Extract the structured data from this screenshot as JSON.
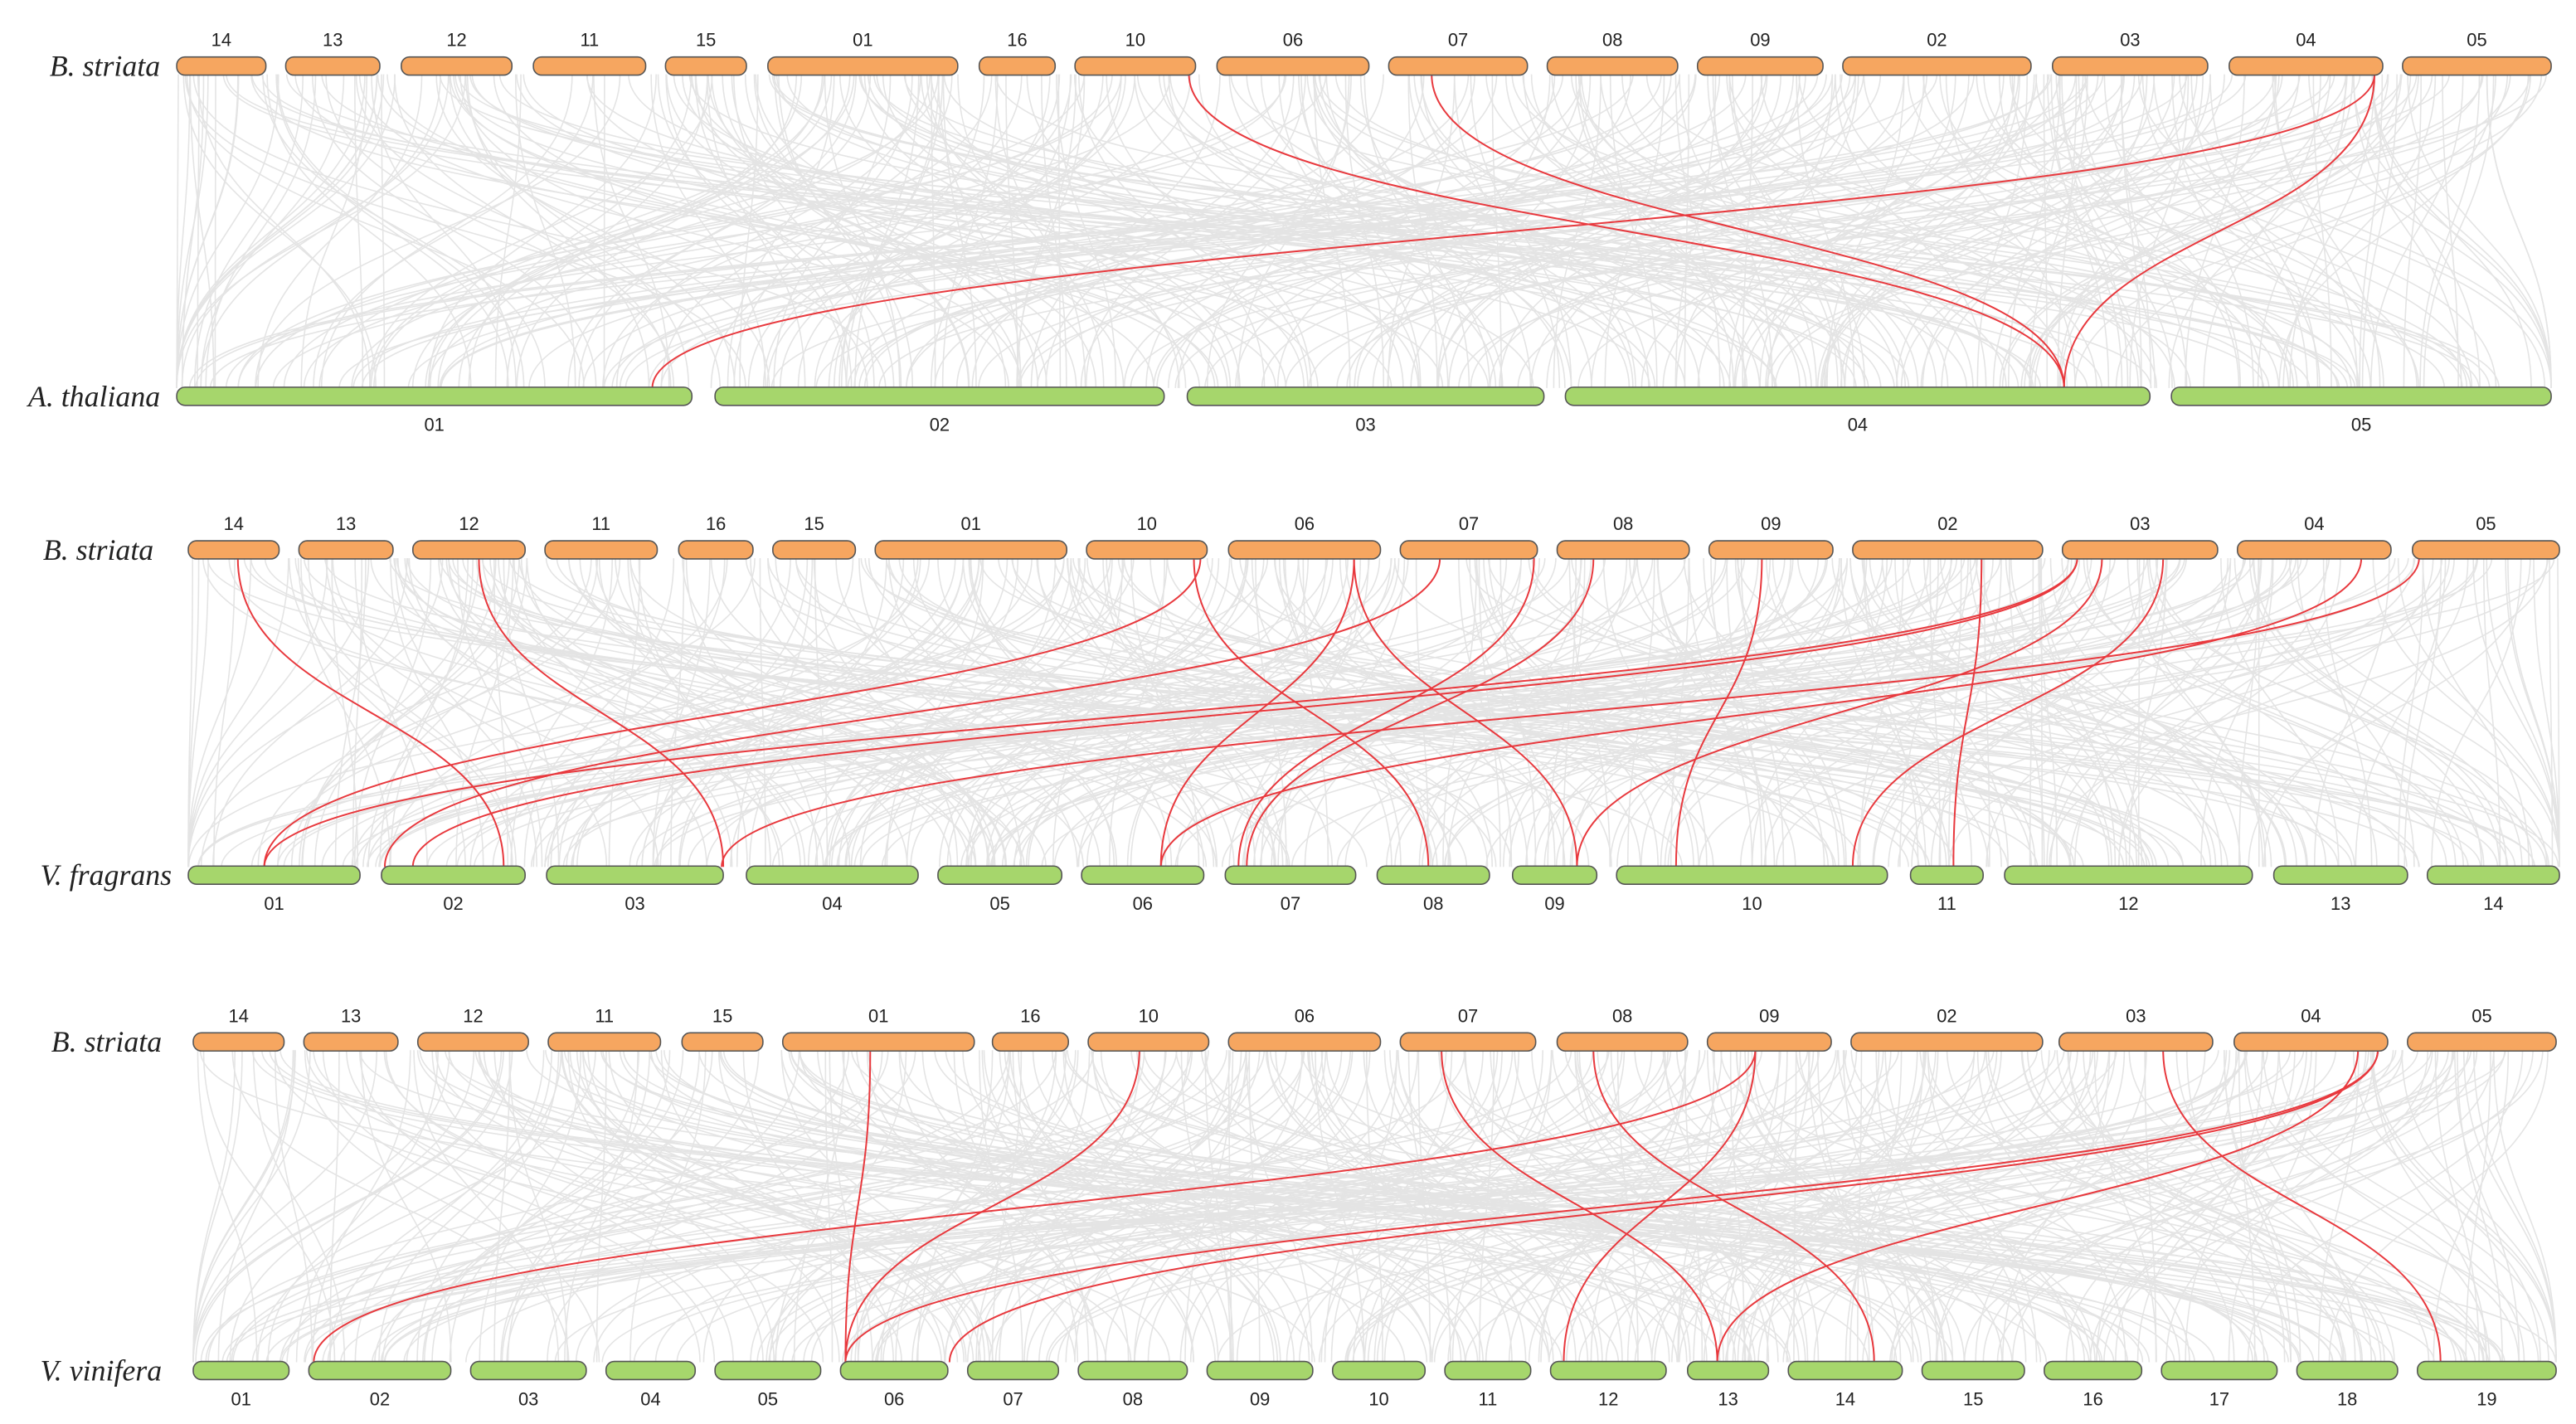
{
  "panels": [
    {
      "top": {
        "species": "B. striata",
        "chromosomes": [
          "14",
          "13",
          "12",
          "11",
          "15",
          "01",
          "16",
          "10",
          "06",
          "07",
          "08",
          "09",
          "02",
          "03",
          "04",
          "05"
        ]
      },
      "bottom": {
        "species": "A. thaliana",
        "chromosomes": [
          "01",
          "02",
          "03",
          "04",
          "05"
        ]
      }
    },
    {
      "top": {
        "species": "B. striata",
        "chromosomes": [
          "14",
          "13",
          "12",
          "11",
          "16",
          "15",
          "01",
          "10",
          "06",
          "07",
          "08",
          "09",
          "02",
          "03",
          "04",
          "05"
        ]
      },
      "bottom": {
        "species": "V. fragrans",
        "chromosomes": [
          "01",
          "02",
          "03",
          "04",
          "05",
          "06",
          "07",
          "08",
          "09",
          "10",
          "11",
          "12",
          "13",
          "14"
        ]
      }
    },
    {
      "top": {
        "species": "B. striata",
        "chromosomes": [
          "14",
          "13",
          "12",
          "11",
          "15",
          "01",
          "16",
          "10",
          "06",
          "07",
          "08",
          "09",
          "02",
          "03",
          "04",
          "05"
        ]
      },
      "bottom": {
        "species": "V. vinifera",
        "chromosomes": [
          "01",
          "02",
          "03",
          "04",
          "05",
          "06",
          "07",
          "08",
          "09",
          "10",
          "11",
          "12",
          "13",
          "14",
          "15",
          "16",
          "17",
          "18",
          "19"
        ]
      }
    }
  ]
}
